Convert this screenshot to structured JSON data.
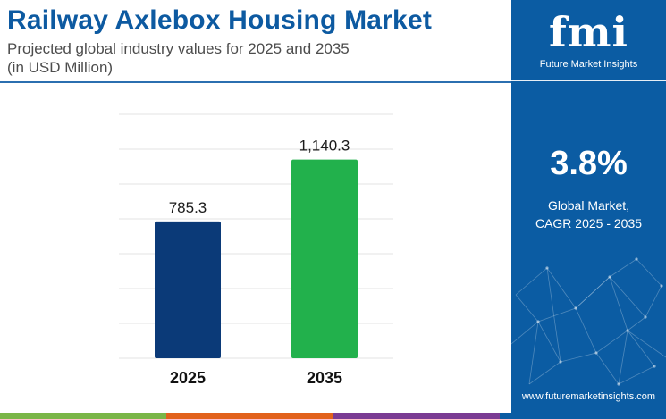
{
  "header": {
    "title": "Railway Axlebox Housing Market",
    "subtitle": "Projected global industry values for 2025 and 2035",
    "unit": "(in USD Million)"
  },
  "sidebar": {
    "logo_text": "fmi",
    "logo_name": "Future Market Insights",
    "cagr_value": "3.8%",
    "cagr_label_1": "Global Market,",
    "cagr_label_2": "CAGR 2025 - 2035",
    "website": "www.futuremarketinsights.com"
  },
  "colors": {
    "title": "#0d5aa1",
    "bar_2025": "#0b3a78",
    "bar_2035": "#22b14c",
    "panel": "#0b5ca3",
    "bottom_bar": [
      "#7ab648",
      "#e2621c",
      "#7a3b93",
      "#0b5ca3"
    ]
  },
  "chart_data": {
    "type": "bar",
    "categories": [
      "2025",
      "2035"
    ],
    "values": [
      785.3,
      1140.3
    ],
    "value_labels": [
      "785.3",
      "1,140.3"
    ],
    "title": "",
    "xlabel": "",
    "ylabel": "",
    "ylim": [
      0,
      1400
    ],
    "grid": true
  }
}
